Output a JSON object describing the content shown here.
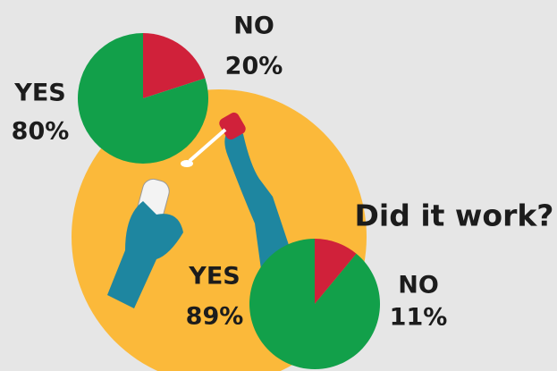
{
  "chart_data": [
    {
      "type": "pie",
      "categories": [
        "NO",
        "YES"
      ],
      "values": [
        20,
        80
      ],
      "value_labels": [
        "20%",
        "80%"
      ],
      "colors": [
        "#d0213a",
        "#12a04a"
      ]
    },
    {
      "type": "pie",
      "title": "Did it work?",
      "categories": [
        "NO",
        "YES"
      ],
      "values": [
        11,
        89
      ],
      "value_labels": [
        "11%",
        "89%"
      ],
      "colors": [
        "#d0213a",
        "#12a04a"
      ]
    }
  ]
}
